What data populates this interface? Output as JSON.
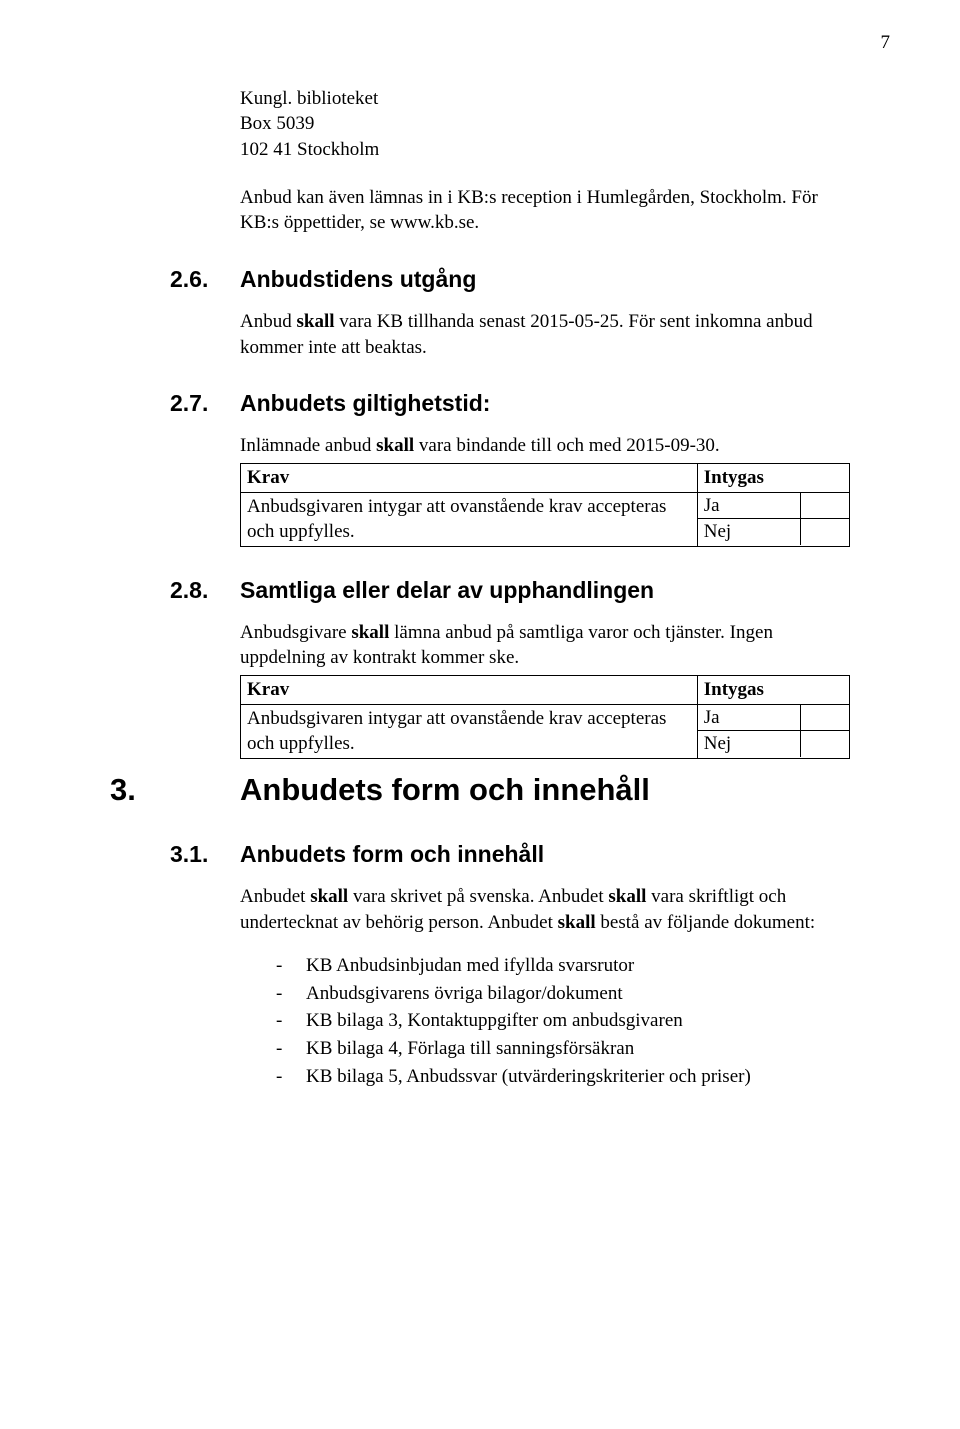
{
  "pageNumber": "7",
  "address": {
    "line1": "Kungl. biblioteket",
    "line2": "Box 5039",
    "line3": "102 41 Stockholm"
  },
  "receptionInfo": {
    "p1a": "Anbud kan även lämnas in i KB:s reception i Humlegården, Stockholm. För",
    "p1b": "KB:s öppettider, se www.kb.se."
  },
  "s26": {
    "num": "2.6.",
    "title": "Anbudstidens utgång",
    "p1a": "Anbud ",
    "p1skall": "skall",
    "p1b": " vara KB tillhanda senast 2015-05-25. För sent inkomna anbud kommer inte att beaktas."
  },
  "s27": {
    "num": "2.7.",
    "title": "Anbudets giltighetstid:",
    "p1a": "Inlämnade anbud ",
    "p1skall": "skall",
    "p1b": " vara bindande till och med 2015-09-30."
  },
  "kravTable": {
    "h1": "Krav",
    "h2": "Intygas",
    "body": "Anbudsgivaren intygar att ovanstående krav accepteras och uppfylles.",
    "yes": "Ja",
    "no": "Nej"
  },
  "s28": {
    "num": "2.8.",
    "title": "Samtliga eller delar av upphandlingen",
    "p1a": "Anbudsgivare ",
    "p1skall": "skall",
    "p1b": " lämna anbud på samtliga varor och tjänster. Ingen uppdelning av kontrakt kommer ske."
  },
  "s3": {
    "num": "3.",
    "title": "Anbudets form och innehåll"
  },
  "s31": {
    "num": "3.1.",
    "title": "Anbudets form och innehåll",
    "p1a": "Anbudet ",
    "skall1": "skall",
    "p1b": " vara skrivet på svenska. Anbudet ",
    "skall2": "skall",
    "p1c": " vara skriftligt och undertecknat av behörig person. Anbudet ",
    "skall3": "skall",
    "p1d": " bestå av följande dokument:"
  },
  "docList": {
    "i1": "KB Anbudsinbjudan med ifyllda svarsrutor",
    "i2": "Anbudsgivarens övriga bilagor/dokument",
    "i3": "KB bilaga 3, Kontaktuppgifter om anbudsgivaren",
    "i4": "KB bilaga 4, Förlaga till sanningsförsäkran",
    "i5": "KB bilaga 5, Anbudssvar (utvärderingskriterier och priser)"
  }
}
